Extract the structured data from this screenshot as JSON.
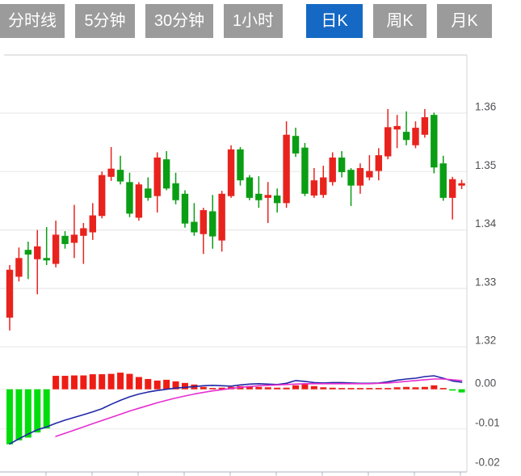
{
  "tabs": {
    "active_index": 4,
    "items": [
      {
        "label": "分时线"
      },
      {
        "label": "5分钟"
      },
      {
        "label": "30分钟"
      },
      {
        "label": "1小时"
      },
      {
        "label": "日K"
      },
      {
        "label": "周K"
      },
      {
        "label": "月K"
      }
    ]
  },
  "chart_data": {
    "type": "candlestick",
    "title": "",
    "xlabel": "",
    "ylabel": "",
    "grid": true,
    "legend": "none",
    "price_axis": {
      "side": "right",
      "ticks": [
        {
          "label": "1.36",
          "value": 1.36
        },
        {
          "label": "1.35",
          "value": 1.35
        },
        {
          "label": "1.34",
          "value": 1.34
        },
        {
          "label": "1.33",
          "value": 1.33
        },
        {
          "label": "1.32",
          "value": 1.32
        }
      ]
    },
    "candles": [
      {
        "o": 1.325,
        "h": 1.334,
        "l": 1.3228,
        "c": 1.3332
      },
      {
        "o": 1.332,
        "h": 1.337,
        "l": 1.3312,
        "c": 1.3352
      },
      {
        "o": 1.3366,
        "h": 1.338,
        "l": 1.3316,
        "c": 1.3358
      },
      {
        "o": 1.335,
        "h": 1.34,
        "l": 1.329,
        "c": 1.3372
      },
      {
        "o": 1.335,
        "h": 1.3405,
        "l": 1.334,
        "c": 1.3346
      },
      {
        "o": 1.3342,
        "h": 1.3416,
        "l": 1.3336,
        "c": 1.3392
      },
      {
        "o": 1.339,
        "h": 1.3398,
        "l": 1.3368,
        "c": 1.3376
      },
      {
        "o": 1.3378,
        "h": 1.3443,
        "l": 1.3352,
        "c": 1.3392
      },
      {
        "o": 1.339,
        "h": 1.3412,
        "l": 1.3342,
        "c": 1.3403
      },
      {
        "o": 1.3396,
        "h": 1.3446,
        "l": 1.3383,
        "c": 1.3425
      },
      {
        "o": 1.3424,
        "h": 1.35,
        "l": 1.342,
        "c": 1.3494
      },
      {
        "o": 1.3491,
        "h": 1.3542,
        "l": 1.3484,
        "c": 1.3505
      },
      {
        "o": 1.3503,
        "h": 1.3527,
        "l": 1.3478,
        "c": 1.3483
      },
      {
        "o": 1.3482,
        "h": 1.3498,
        "l": 1.3422,
        "c": 1.3428
      },
      {
        "o": 1.3421,
        "h": 1.3482,
        "l": 1.3416,
        "c": 1.3478
      },
      {
        "o": 1.3471,
        "h": 1.349,
        "l": 1.345,
        "c": 1.3455
      },
      {
        "o": 1.3458,
        "h": 1.3533,
        "l": 1.343,
        "c": 1.3524
      },
      {
        "o": 1.3521,
        "h": 1.3535,
        "l": 1.3468,
        "c": 1.3471
      },
      {
        "o": 1.348,
        "h": 1.3498,
        "l": 1.3444,
        "c": 1.3451
      },
      {
        "o": 1.3462,
        "h": 1.3468,
        "l": 1.3404,
        "c": 1.3411
      },
      {
        "o": 1.3414,
        "h": 1.3446,
        "l": 1.339,
        "c": 1.3396
      },
      {
        "o": 1.3393,
        "h": 1.3438,
        "l": 1.3359,
        "c": 1.3434
      },
      {
        "o": 1.3432,
        "h": 1.346,
        "l": 1.3368,
        "c": 1.3389
      },
      {
        "o": 1.3382,
        "h": 1.3467,
        "l": 1.3363,
        "c": 1.3462
      },
      {
        "o": 1.3458,
        "h": 1.3545,
        "l": 1.3455,
        "c": 1.3538
      },
      {
        "o": 1.3538,
        "h": 1.3542,
        "l": 1.3476,
        "c": 1.3485
      },
      {
        "o": 1.349,
        "h": 1.3494,
        "l": 1.3451,
        "c": 1.3455
      },
      {
        "o": 1.3462,
        "h": 1.3492,
        "l": 1.3438,
        "c": 1.3451
      },
      {
        "o": 1.3455,
        "h": 1.3482,
        "l": 1.3412,
        "c": 1.346
      },
      {
        "o": 1.3459,
        "h": 1.3471,
        "l": 1.343,
        "c": 1.3446
      },
      {
        "o": 1.3446,
        "h": 1.3586,
        "l": 1.3438,
        "c": 1.3563
      },
      {
        "o": 1.3561,
        "h": 1.3575,
        "l": 1.3525,
        "c": 1.3531
      },
      {
        "o": 1.3541,
        "h": 1.3549,
        "l": 1.3458,
        "c": 1.3462
      },
      {
        "o": 1.3459,
        "h": 1.3506,
        "l": 1.3455,
        "c": 1.3485
      },
      {
        "o": 1.346,
        "h": 1.351,
        "l": 1.3455,
        "c": 1.349
      },
      {
        "o": 1.3482,
        "h": 1.3533,
        "l": 1.3476,
        "c": 1.3524
      },
      {
        "o": 1.3524,
        "h": 1.3535,
        "l": 1.349,
        "c": 1.3499
      },
      {
        "o": 1.3503,
        "h": 1.3506,
        "l": 1.3441,
        "c": 1.3476
      },
      {
        "o": 1.3476,
        "h": 1.3514,
        "l": 1.3462,
        "c": 1.3506
      },
      {
        "o": 1.349,
        "h": 1.3528,
        "l": 1.3485,
        "c": 1.3501
      },
      {
        "o": 1.3501,
        "h": 1.354,
        "l": 1.3485,
        "c": 1.3528
      },
      {
        "o": 1.3526,
        "h": 1.3607,
        "l": 1.3521,
        "c": 1.3576
      },
      {
        "o": 1.3572,
        "h": 1.3597,
        "l": 1.354,
        "c": 1.3578
      },
      {
        "o": 1.3568,
        "h": 1.3603,
        "l": 1.3545,
        "c": 1.3554
      },
      {
        "o": 1.3545,
        "h": 1.3586,
        "l": 1.354,
        "c": 1.3575
      },
      {
        "o": 1.3563,
        "h": 1.3607,
        "l": 1.3558,
        "c": 1.3593
      },
      {
        "o": 1.3597,
        "h": 1.3601,
        "l": 1.3497,
        "c": 1.3507
      },
      {
        "o": 1.3514,
        "h": 1.3527,
        "l": 1.345,
        "c": 1.3455
      },
      {
        "o": 1.3455,
        "h": 1.3491,
        "l": 1.3418,
        "c": 1.3487
      },
      {
        "o": 1.3478,
        "h": 1.3486,
        "l": 1.347,
        "c": 1.3478
      }
    ],
    "macd": {
      "axis": [
        {
          "label": "0.00",
          "value": 0
        },
        {
          "label": "-0.01",
          "value": -0.01
        },
        {
          "label": "-0.02",
          "value": -0.02
        }
      ],
      "hist": [
        -0.0139,
        -0.0129,
        -0.0122,
        -0.0109,
        -0.0099,
        0.0034,
        0.0034,
        0.0035,
        0.0035,
        0.0038,
        0.0038,
        0.0039,
        0.0042,
        0.0039,
        0.0031,
        0.0026,
        0.0022,
        0.0024,
        0.002,
        0.0016,
        0.0012,
        0.0006,
        0.0003,
        0.0004,
        0.0006,
        0.0008,
        0.0008,
        0.0006,
        0.0005,
        0.0004,
        0.0004,
        0.001,
        0.0013,
        0.0008,
        0.0005,
        0.0004,
        0.0003,
        0.0003,
        0.0003,
        0.0001,
        0.0001,
        0.0003,
        0.0005,
        0.0006,
        0.0005,
        0.0006,
        0.001,
        0.0002,
        -0.0003,
        -0.0008
      ],
      "dif": [
        -0.0138,
        -0.0125,
        -0.0113,
        -0.0102,
        -0.0095,
        -0.0086,
        -0.0078,
        -0.0071,
        -0.0064,
        -0.0057,
        -0.0049,
        -0.0038,
        -0.0028,
        -0.0019,
        -0.0012,
        -0.0007,
        -0.0003,
        0.0,
        0.0003,
        0.0005,
        0.0007,
        0.0009,
        0.001,
        0.0009,
        0.0008,
        0.0011,
        0.0013,
        0.0014,
        0.0013,
        0.0012,
        0.0015,
        0.0022,
        0.002,
        0.0017,
        0.0016,
        0.0017,
        0.0017,
        0.0016,
        0.0015,
        0.0015,
        0.0016,
        0.0019,
        0.0023,
        0.0026,
        0.0028,
        0.0032,
        0.0034,
        0.0028,
        0.0021,
        0.0018
      ],
      "dea": [
        null,
        null,
        null,
        null,
        null,
        -0.0119,
        -0.0111,
        -0.0103,
        -0.0095,
        -0.0087,
        -0.0079,
        -0.0071,
        -0.0063,
        -0.0055,
        -0.0048,
        -0.0041,
        -0.0034,
        -0.0028,
        -0.0022,
        -0.0017,
        -0.0012,
        -0.0008,
        -0.0004,
        -0.0001,
        0.0002,
        0.0005,
        0.0007,
        0.0009,
        0.001,
        0.0011,
        0.0012,
        0.0013,
        0.0014,
        0.0014,
        0.0014,
        0.0014,
        0.0014,
        0.0014,
        0.0014,
        0.0014,
        0.0015,
        0.0016,
        0.0018,
        0.002,
        0.0022,
        0.0024,
        0.0026,
        0.0026,
        0.0024,
        0.0022
      ]
    },
    "colors": {
      "up": "#e8231e",
      "down": "#0a9e14",
      "hist_up": "#ee1c14",
      "hist_down": "#00dd0a",
      "dif_line": "#2127a8",
      "dea_line": "#e62ed0",
      "grid": "#e9e9e9",
      "axis_line": "#b9bfc9",
      "label": "#515155",
      "tab_bg": "#9b9b9b",
      "tab_active_bg": "#1569c4",
      "tab_text": "#ffffff"
    }
  }
}
